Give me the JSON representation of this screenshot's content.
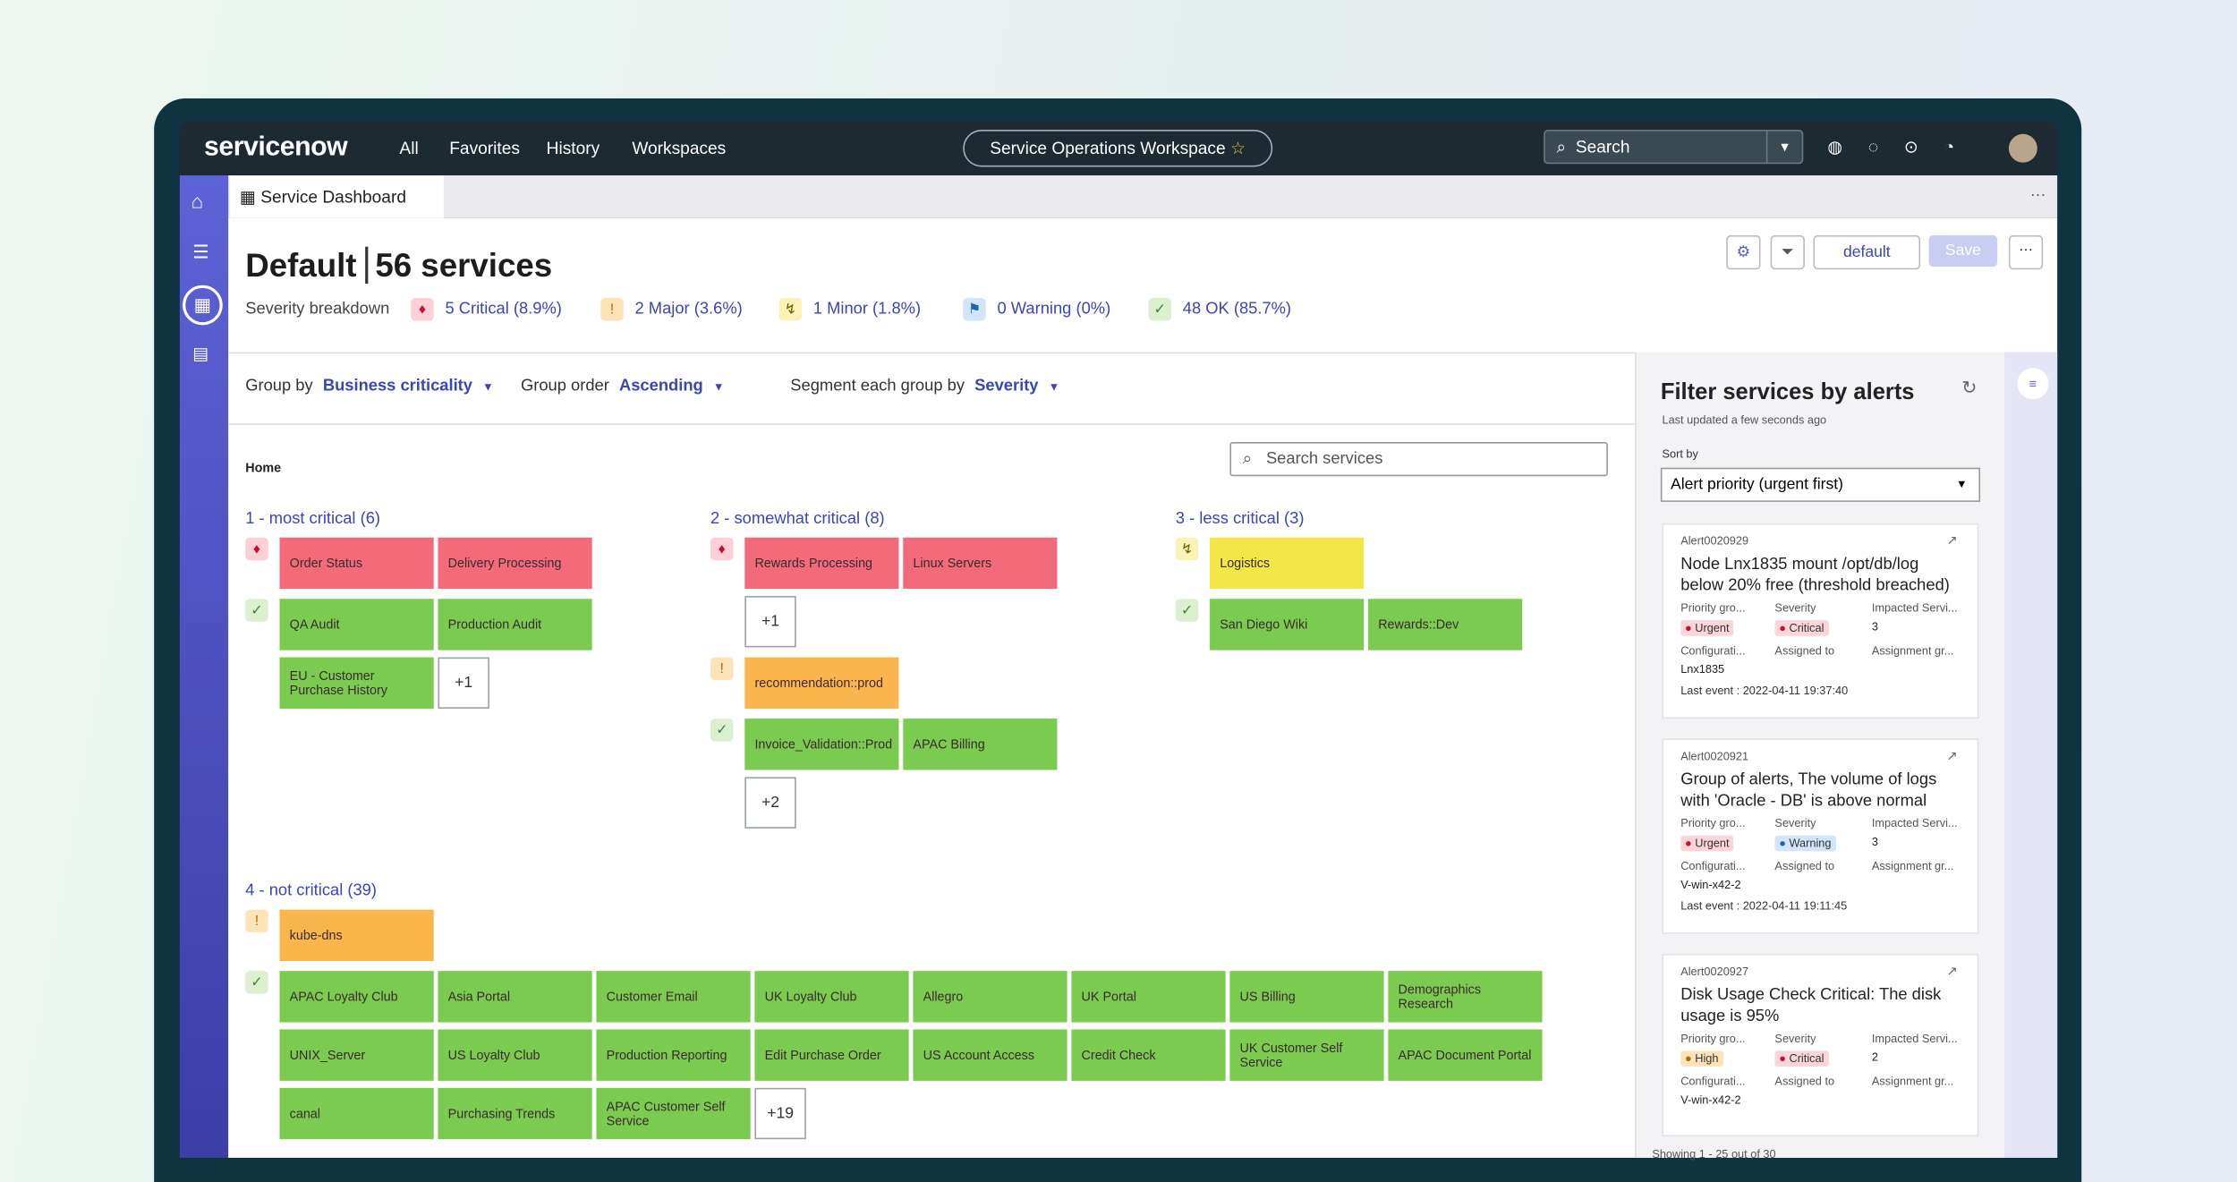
{
  "nav": {
    "brand": "servicenow",
    "items": [
      "All",
      "Favorites",
      "History",
      "Workspaces"
    ],
    "workspace": "Service Operations Workspace",
    "search": "Search"
  },
  "tab": "Service Dashboard",
  "header": {
    "title": "Default",
    "count": "56 services",
    "preset": "default",
    "save": "Save"
  },
  "severity": {
    "label": "Severity breakdown",
    "items": [
      {
        "text": "5 Critical (8.9%)",
        "kind": "critical"
      },
      {
        "text": "2 Major (3.6%)",
        "kind": "major"
      },
      {
        "text": "1 Minor (1.8%)",
        "kind": "minor"
      },
      {
        "text": "0 Warning (0%)",
        "kind": "warning"
      },
      {
        "text": "48 OK (85.7%)",
        "kind": "ok"
      }
    ]
  },
  "controls": [
    {
      "label": "Group by",
      "value": "Business criticality"
    },
    {
      "label": "Group order",
      "value": "Ascending"
    },
    {
      "label": "Segment each group by",
      "value": "Severity"
    }
  ],
  "breadcrumb": "Home",
  "search_placeholder": "Search services",
  "groups": [
    {
      "title": "1 - most critical (6)",
      "columns": 2,
      "rows": [
        {
          "kind": "critical",
          "tiles": [
            "Order Status",
            "Delivery Processing"
          ]
        },
        {
          "kind": "ok",
          "tiles": [
            "QA Audit",
            "Production Audit",
            "EU - Customer Purchase History"
          ],
          "more": "+1"
        }
      ]
    },
    {
      "title": "2 - somewhat critical (8)",
      "columns": 2,
      "rows": [
        {
          "kind": "critical",
          "tiles": [
            "Rewards Processing",
            "Linux Servers"
          ],
          "more": "+1"
        },
        {
          "kind": "major",
          "tiles": [
            "recommendation::prod"
          ]
        },
        {
          "kind": "ok",
          "tiles": [
            "Invoice_Validation::Prod",
            "APAC Billing"
          ],
          "more": "+2"
        }
      ]
    },
    {
      "title": "3 - less critical (3)",
      "columns": 2,
      "rows": [
        {
          "kind": "minor",
          "tiles": [
            "Logistics"
          ]
        },
        {
          "kind": "ok",
          "tiles": [
            "San Diego Wiki",
            "Rewards::Dev"
          ]
        }
      ]
    },
    {
      "title": "4 - not critical (39)",
      "columns": 8,
      "rows": [
        {
          "kind": "major",
          "tiles": [
            "kube-dns"
          ]
        },
        {
          "kind": "ok",
          "tiles": [
            "APAC Loyalty Club",
            "Asia Portal",
            "Customer Email",
            "UK Loyalty Club",
            "Allegro",
            "UK Portal",
            "US Billing",
            "Demographics Research",
            "UNIX_Server",
            "US Loyalty Club",
            "Production Reporting",
            "Edit Purchase Order",
            "US Account Access",
            "Credit Check",
            "UK Customer Self Service",
            "APAC Document Portal",
            "canal",
            "Purchasing Trends",
            "APAC Customer Self Service"
          ],
          "more": "+19"
        }
      ]
    }
  ],
  "panel": {
    "title": "Filter services by alerts",
    "updated": "Last updated a few seconds ago",
    "sort_label": "Sort by",
    "sort_value": "Alert priority (urgent first)",
    "field_labels": [
      "Priority gro...",
      "Severity",
      "Impacted Servi...",
      "Configurati...",
      "Assigned to",
      "Assignment gr..."
    ],
    "cards": [
      {
        "id": "Alert0020929",
        "title": "Node Lnx1835 mount /opt/db/log below 20% free (threshold breached)",
        "priority": "Urgent",
        "severity": "Critical",
        "impacted": "3",
        "config": "Lnx1835",
        "last": "Last event : 2022-04-11 19:37:40"
      },
      {
        "id": "Alert0020921",
        "title": "Group of alerts, The volume of logs with 'Oracle - DB' is above normal",
        "priority": "Urgent",
        "severity": "Warning",
        "impacted": "3",
        "config": "V-win-x42-2",
        "last": "Last event : 2022-04-11 19:11:45"
      },
      {
        "id": "Alert0020927",
        "title": "Disk Usage Check Critical: The disk usage is 95%",
        "priority": "High",
        "severity": "Critical",
        "impacted": "2",
        "config": "V-win-x42-2"
      }
    ],
    "footer": "Showing 1 - 25 out of 30"
  }
}
